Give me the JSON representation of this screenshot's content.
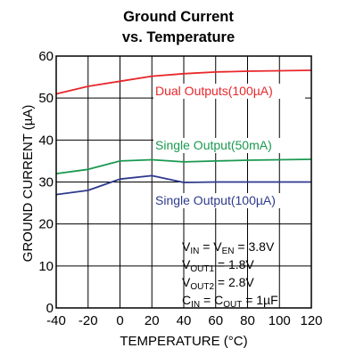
{
  "chart_data": {
    "type": "line",
    "title_line1": "Ground Current",
    "title_line2": "vs. Temperature",
    "xlabel": "TEMPERATURE (°C)",
    "ylabel": "GROUND CURRENT (µA)",
    "xlim": [
      -40,
      120
    ],
    "ylim": [
      0,
      60
    ],
    "x_ticks": [
      "-40",
      "-20",
      "0",
      "20",
      "40",
      "60",
      "80",
      "100",
      "120"
    ],
    "y_ticks": [
      "0",
      "10",
      "20",
      "30",
      "40",
      "50",
      "60"
    ],
    "grid": true,
    "series": [
      {
        "name": "Dual Outputs(100µA)",
        "color": "#e8262b",
        "x": [
          -40,
          -20,
          0,
          20,
          40,
          60,
          80,
          100,
          120
        ],
        "y": [
          51.0,
          52.8,
          54.0,
          55.2,
          55.8,
          56.2,
          56.4,
          56.5,
          56.6
        ]
      },
      {
        "name": "Single Output(50mA)",
        "color": "#1a9950",
        "x": [
          -40,
          -20,
          0,
          20,
          40,
          60,
          80,
          100,
          120
        ],
        "y": [
          32.0,
          33.0,
          35.0,
          35.3,
          34.8,
          35.0,
          35.2,
          35.3,
          35.4
        ]
      },
      {
        "name": "Single Output(100µA)",
        "color": "#2e3a8c",
        "x": [
          -40,
          -20,
          0,
          20,
          40,
          60,
          80,
          100,
          120
        ],
        "y": [
          27.0,
          28.0,
          30.7,
          31.5,
          29.9,
          30.0,
          30.0,
          30.0,
          30.0
        ]
      }
    ],
    "annotations": {
      "line1": {
        "a": "V",
        "a_sub": "IN",
        "b": " = V",
        "b_sub": "EN",
        "c": " = 3.8V"
      },
      "line2": {
        "a": "V",
        "a_sub": "OUT1",
        "c": " = 1.8V"
      },
      "line3": {
        "a": "V",
        "a_sub": "OUT2",
        "c": " = 2.8V"
      },
      "line4": {
        "a": "C",
        "a_sub": "IN",
        "b": " = C",
        "b_sub": "OUT",
        "c": " = 1µF"
      }
    }
  }
}
